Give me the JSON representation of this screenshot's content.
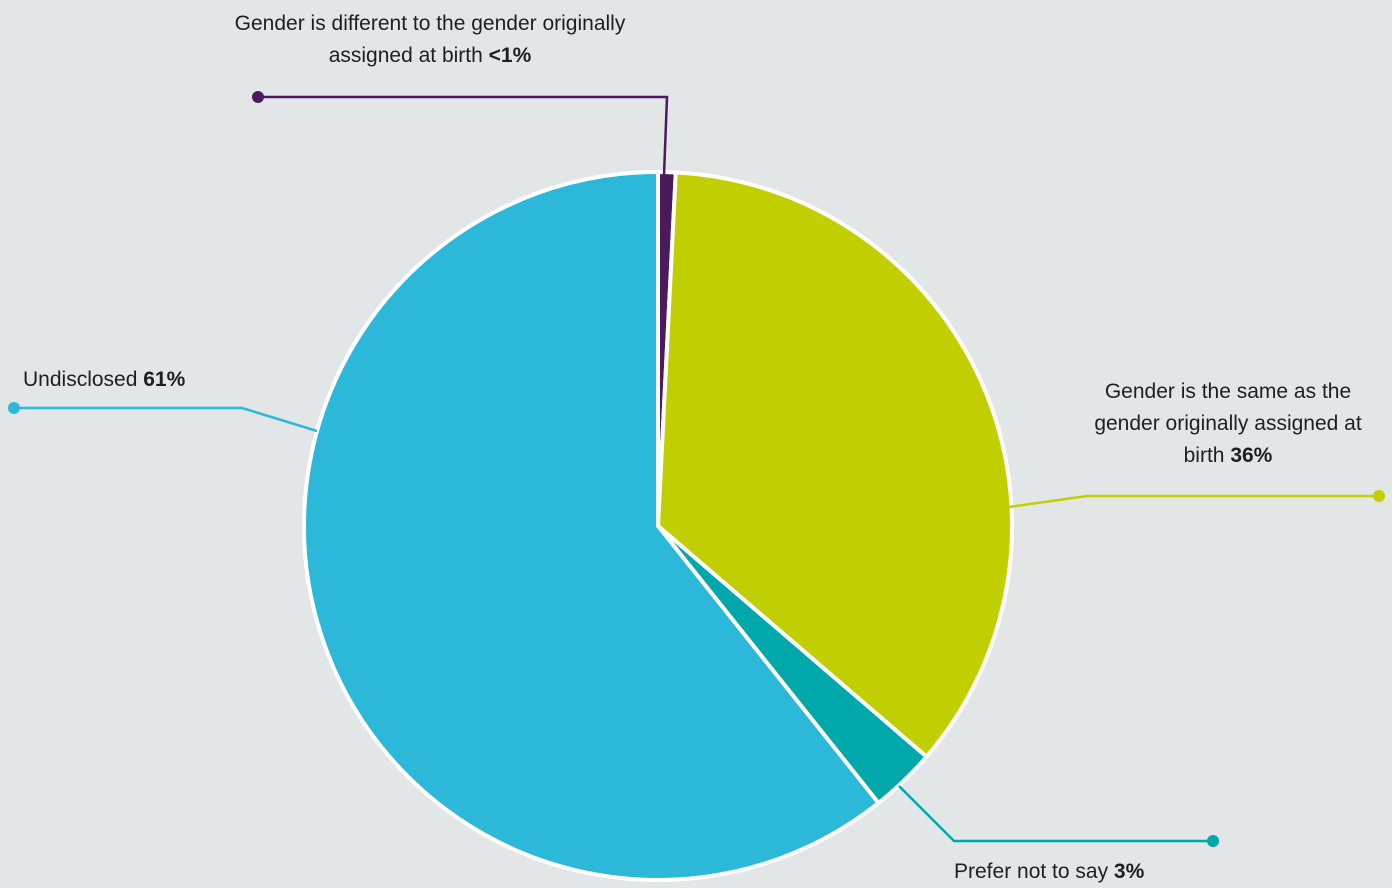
{
  "chart_data": {
    "type": "pie",
    "start_angle_deg": 0,
    "direction": "clockwise",
    "slices": [
      {
        "label": "Gender is different to the gender originally assigned at birth",
        "value_label": "<1%",
        "value": 0.8,
        "color": "#4a1a5c"
      },
      {
        "label": "Gender is the same as the gender originally assigned at birth",
        "value_label": "36%",
        "value": 35.5,
        "color": "#c1cf00"
      },
      {
        "label": "Prefer not to say",
        "value_label": "3%",
        "value": 3.0,
        "color": "#00a8ac"
      },
      {
        "label": "Undisclosed",
        "value_label": "61%",
        "value": 60.7,
        "color": "#2cb8d8"
      }
    ],
    "slice_border_color": "#ffffff",
    "legend": "callout-labels"
  }
}
